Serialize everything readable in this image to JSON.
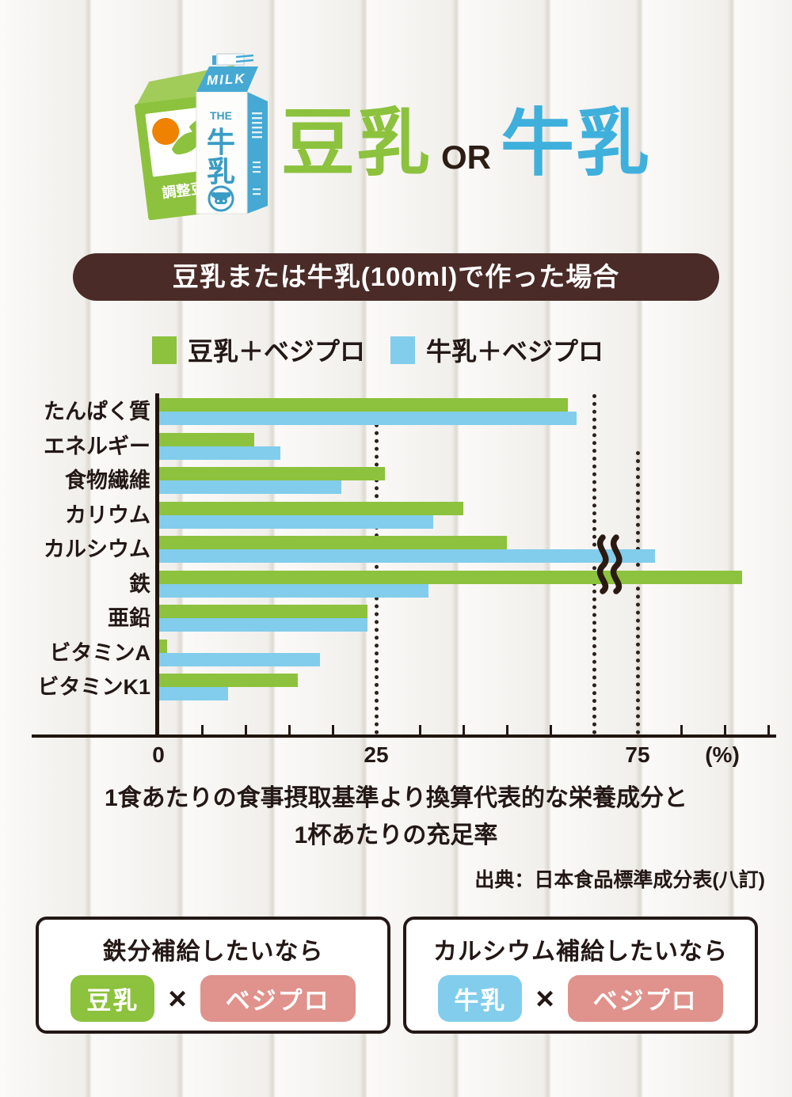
{
  "header": {
    "title_soy": "豆乳",
    "title_or": "OR",
    "title_milk": "牛乳",
    "carton_soy_label": "調整豆乳",
    "carton_milk_top": "MILK",
    "carton_the": "THE",
    "carton_milk_kanji_1": "牛",
    "carton_milk_kanji_2": "乳"
  },
  "banner": {
    "text": "豆乳または牛乳(100ml)で作った場合"
  },
  "chart_data": {
    "type": "bar",
    "orientation": "horizontal",
    "title": "豆乳または牛乳(100ml)で作った場合",
    "categories": [
      "たんぱく質",
      "エネルギー",
      "食物繊維",
      "カリウム",
      "カルシウム",
      "鉄",
      "亜鉛",
      "ビタミンA",
      "ビタミンK1"
    ],
    "series": [
      {
        "name": "豆乳＋ベジプロ",
        "color": "#8cc23d",
        "values": [
          47,
          11,
          26,
          35,
          40,
          87,
          24,
          1,
          16
        ]
      },
      {
        "name": "牛乳＋ベジプロ",
        "color": "#82cdec",
        "values": [
          48,
          14,
          21,
          31.5,
          77,
          31,
          24,
          18.5,
          8
        ]
      }
    ],
    "x_ticks": [
      {
        "label": "0",
        "value": 0
      },
      {
        "label": "25",
        "value": 25
      },
      {
        "label": "75",
        "value": 75
      },
      {
        "label": "(%)",
        "value": null
      }
    ],
    "x_minor_tick_step": 5,
    "xlim": [
      0,
      90
    ],
    "axis_break": {
      "after": 50,
      "resume_at": 75
    },
    "dotted_guides": [
      25,
      50,
      75
    ],
    "unit": "%",
    "legend_position": "top",
    "grid": "dotted-guides-only"
  },
  "caption": {
    "line1": "1食あたりの食事摂取基準より換算代表的な栄養成分と",
    "line2": "1杯あたりの充足率"
  },
  "source": "出典：日本食品標準成分表(八訂)",
  "recommendations": [
    {
      "title": "鉄分補給したいなら",
      "pill1": "豆乳",
      "pill1_color": "#8cc23d",
      "times": "×",
      "pill2": "ベジプロ",
      "pill2_color": "#e0928c"
    },
    {
      "title": "カルシウム補給したいなら",
      "pill1": "牛乳",
      "pill1_color": "#82cdec",
      "times": "×",
      "pill2": "ベジプロ",
      "pill2_color": "#e0928c"
    }
  ],
  "colors": {
    "soy_green": "#8cc23d",
    "milk_bar_blue": "#82cdec",
    "milk_title_blue": "#3fb0dc",
    "carton_blue": "#45a9d4",
    "dark_text": "#231815",
    "banner_brown": "#4a2b27",
    "pill_pink": "#e0928c",
    "orange_accent": "#ef8200"
  }
}
